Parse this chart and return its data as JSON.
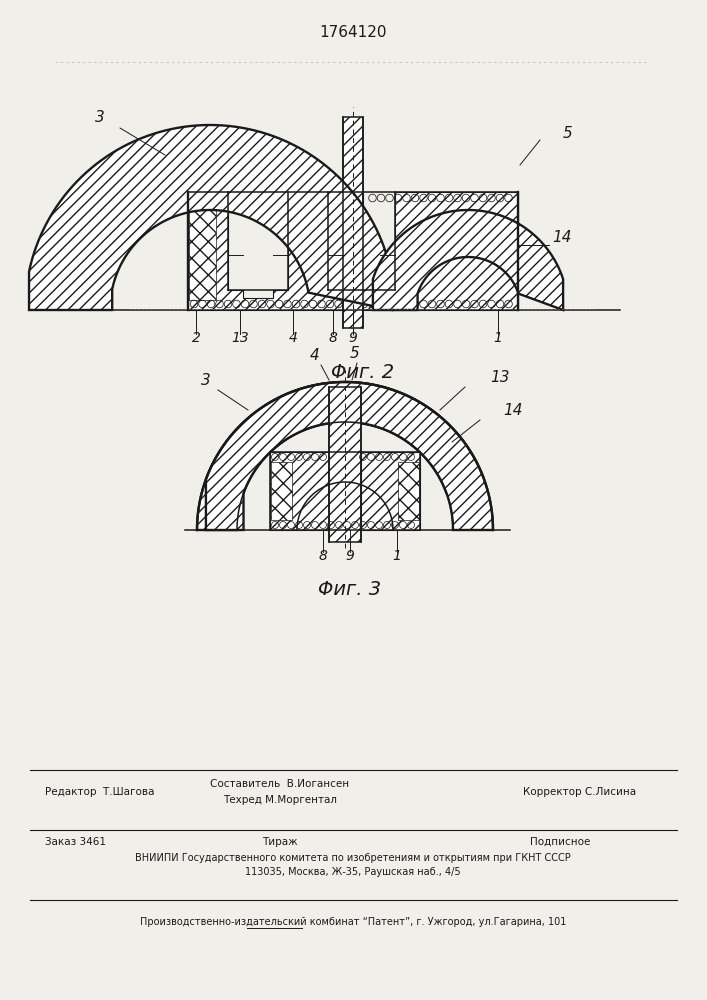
{
  "title_patent": "1764120",
  "fig2_caption": "Φиг. 2",
  "fig3_caption": "Φиг. 3",
  "bg_color": "#f0efea",
  "line_color": "#1a1a1a",
  "footer_line1_left": "Редактор  Т.Шагова",
  "footer_line1_center": "Составитель  В.Иогансен",
  "footer_line2_center": "Техред М.Моргентал",
  "footer_line1_right": "Корректор С.Лисина",
  "footer_order": "Заказ 3461",
  "footer_tirazh": "Тираж",
  "footer_podpisnoe": "Подписное",
  "footer_vniiipi": "ВНИИПИ Государственного комитета по изобретениям и открытиям при ГКНТ СССР",
  "footer_address": "113035, Москва, Ж-35, Раушская наб., 4/5",
  "footer_kombinat": "Производственно-издательский комбинат “Патент”, г. Ужгород, ул.Гагарина, 101"
}
